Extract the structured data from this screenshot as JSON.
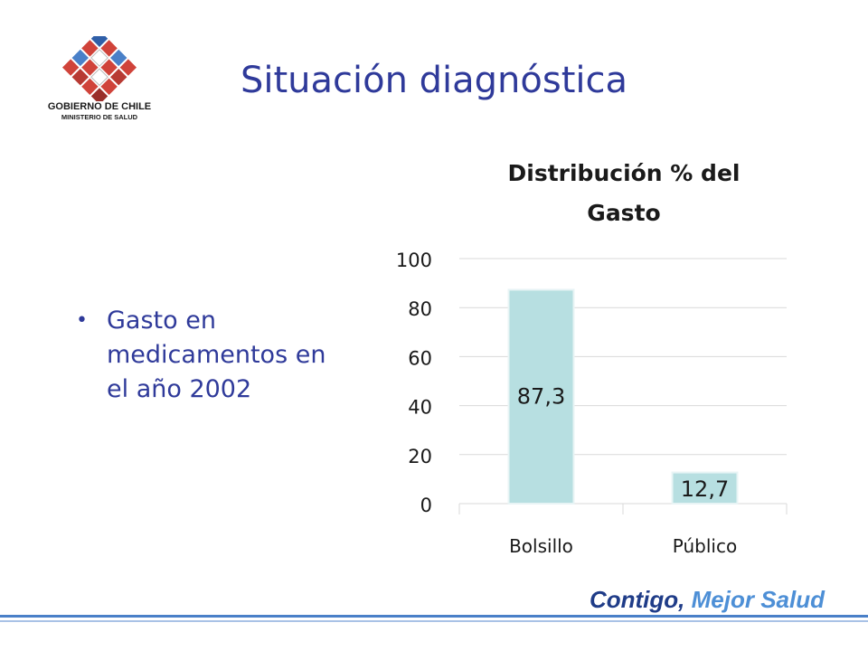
{
  "logo": {
    "line1": "GOBIERNO DE CHILE",
    "line2": "MINISTERIO DE SALUD"
  },
  "title": "Situación diagnóstica",
  "bullet": {
    "text": "Gasto en medicamentos en el año 2002"
  },
  "chart_data": {
    "type": "bar",
    "title_line1": "Distribución % del",
    "title_line2": "Gasto",
    "categories": [
      "Bolsillo",
      "Público"
    ],
    "values": [
      87.3,
      12.7
    ],
    "value_labels": [
      "87,3",
      "12,7"
    ],
    "yticks": [
      "0",
      "20",
      "40",
      "60",
      "80",
      "100"
    ],
    "ylim": [
      0,
      100
    ],
    "grid": true,
    "bar_color": "#b7dfe1",
    "bar_edge_color": "#e8f4f5"
  },
  "footer": {
    "slogan_part1": "Contigo,",
    "slogan_part2": "Mejor Salud"
  },
  "colors": {
    "title": "#2f3a9a",
    "slogan_dark": "#1f3c88",
    "slogan_light": "#4d8fd6"
  }
}
